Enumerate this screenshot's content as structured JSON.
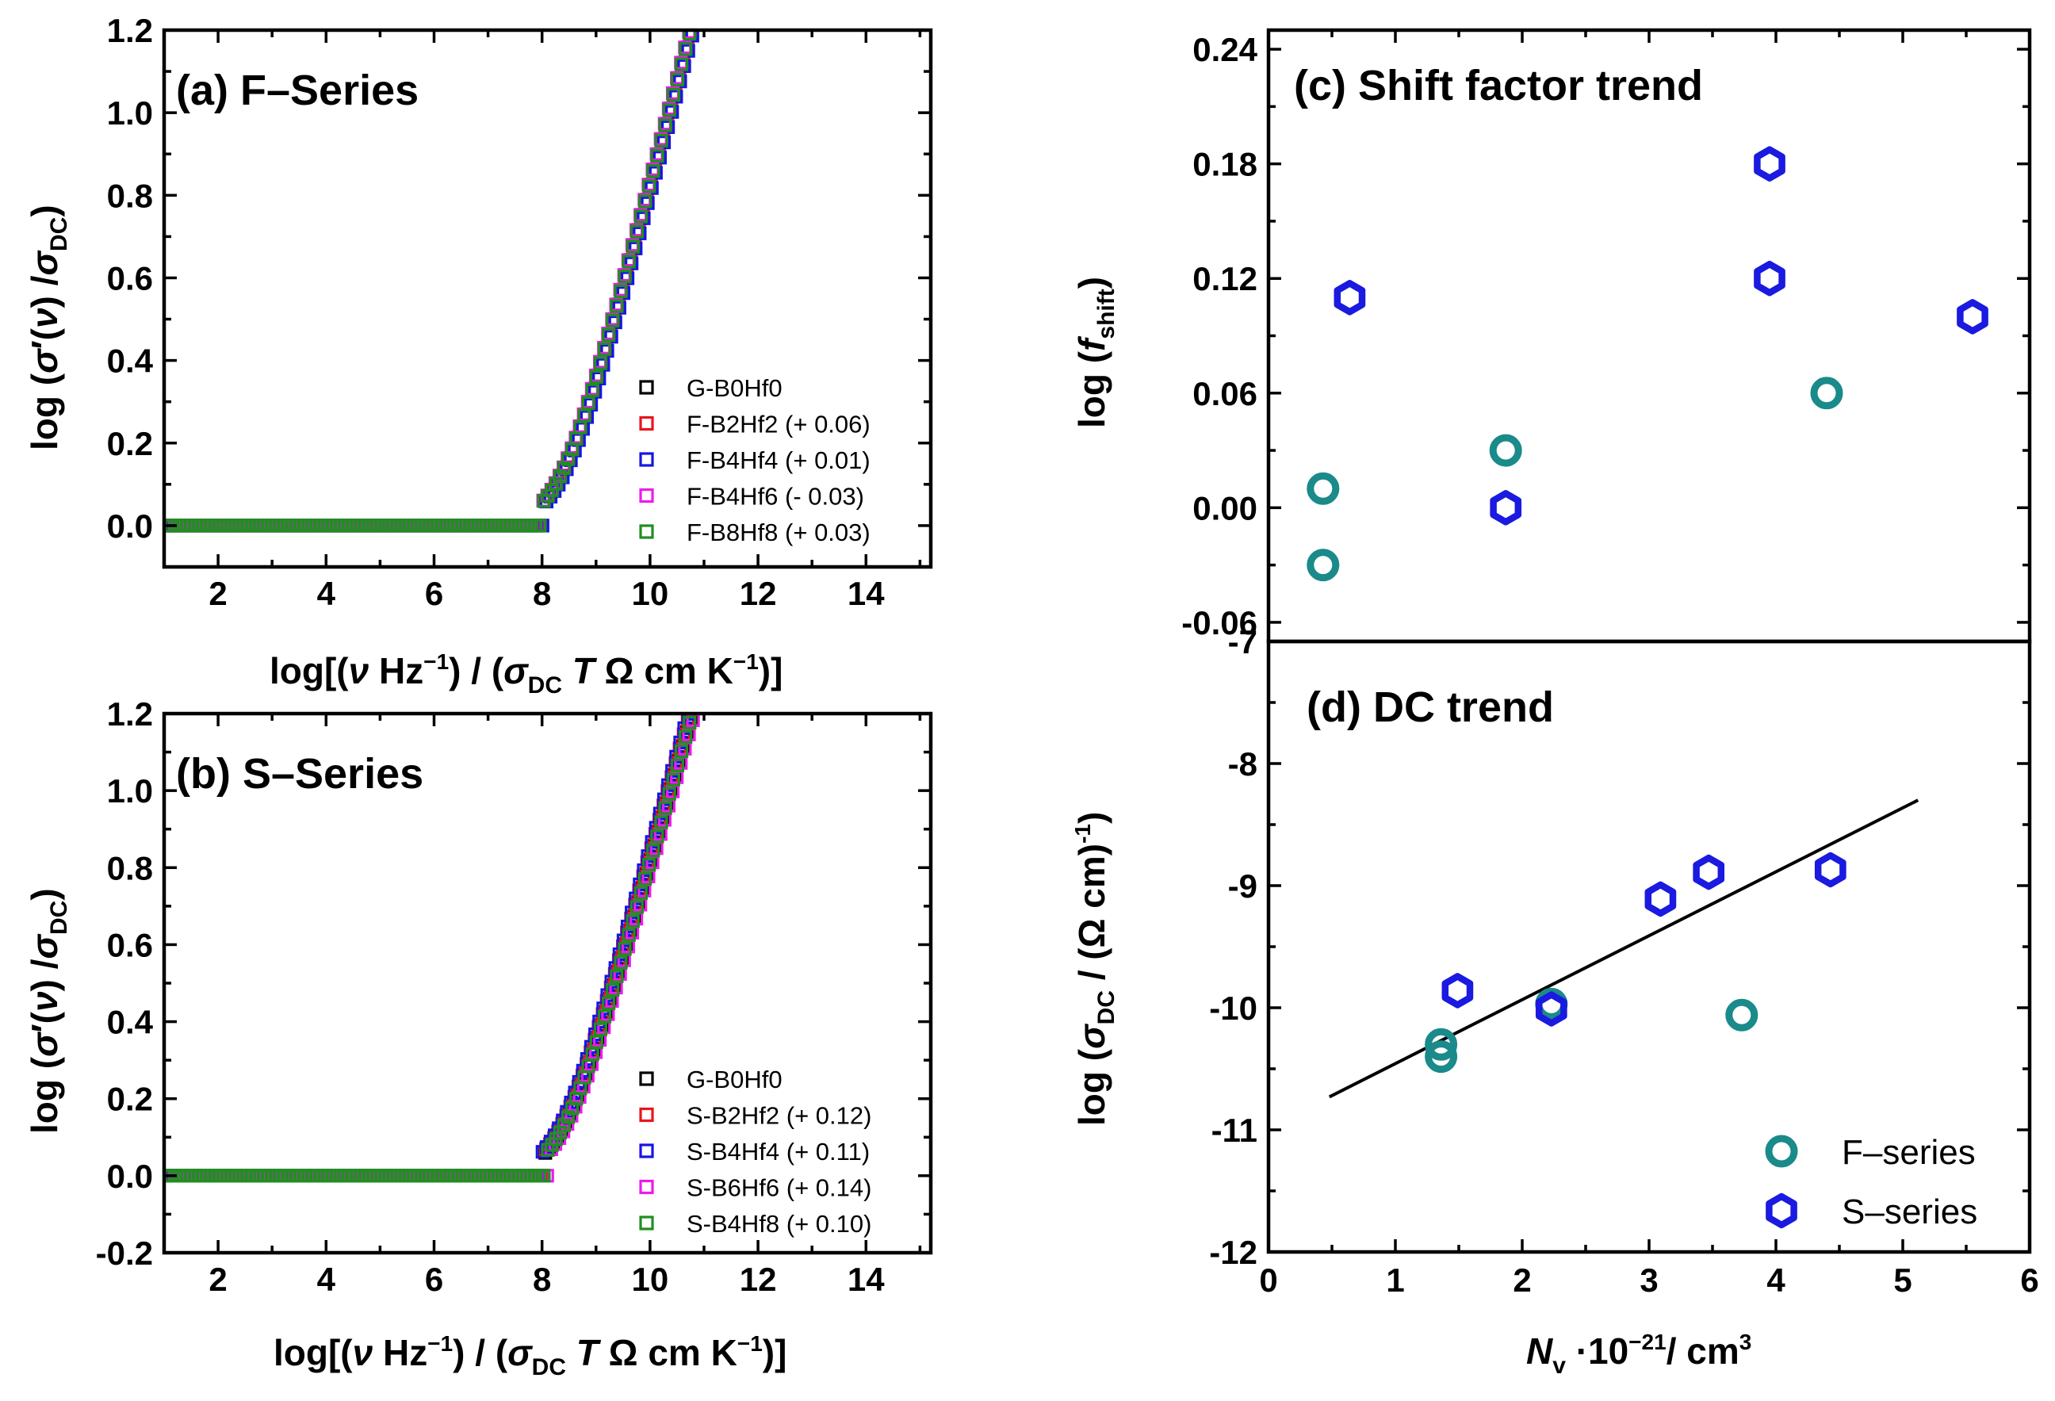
{
  "colors": {
    "black": "#000000",
    "red": "#e8161c",
    "blue": "#1515e6",
    "magenta": "#ee1aee",
    "green": "#1f8f1f",
    "teal": "#1a8a8a",
    "hexblue": "#1a1ae0"
  },
  "chart_data": [
    {
      "id": "a",
      "type": "scatter",
      "title": "(a) F–Series",
      "xlabel": "log[(ν Hz⁻¹) / (σDC T Ω cm K⁻¹)]",
      "ylabel": "log (σ′(ν) / σDC)",
      "xlim": [
        1,
        15.2
      ],
      "ylim": [
        -0.1,
        1.2
      ],
      "xticks": [
        "2",
        "4",
        "6",
        "8",
        "10",
        "12",
        "14"
      ],
      "yticks": [
        "0.0",
        "0.2",
        "0.4",
        "0.6",
        "0.8",
        "1.0",
        "1.2"
      ],
      "legend_position": "lower-right",
      "marker": "open-square",
      "series": [
        {
          "name": "G-B0Hf0",
          "color": "black",
          "x_onset": 8.05
        },
        {
          "name": "F-B2Hf2 (+ 0.06)",
          "color": "red",
          "x_onset": 8.05
        },
        {
          "name": "F-B4Hf4 (+ 0.01)",
          "color": "blue",
          "x_onset": 8.08
        },
        {
          "name": "F-B4Hf6 (- 0.03)",
          "color": "magenta",
          "x_onset": 8.0
        },
        {
          "name": "F-B8Hf8 (+ 0.03)",
          "color": "green",
          "x_onset": 8.02
        }
      ]
    },
    {
      "id": "b",
      "type": "scatter",
      "title": "(b) S–Series",
      "xlabel": "log[(ν Hz⁻¹) / (σDC T Ω cm K⁻¹)]",
      "ylabel": "log (σ′(ν) / σDC)",
      "xlim": [
        1,
        15.2
      ],
      "ylim": [
        -0.2,
        1.2
      ],
      "xticks": [
        "2",
        "4",
        "6",
        "8",
        "10",
        "12",
        "14"
      ],
      "yticks": [
        "-0.2",
        "0.0",
        "0.2",
        "0.4",
        "0.6",
        "0.8",
        "1.0",
        "1.2"
      ],
      "legend_position": "lower-right",
      "marker": "open-square",
      "series": [
        {
          "name": "G-B0Hf0",
          "color": "black",
          "x_onset": 8.05
        },
        {
          "name": "S-B2Hf2 (+ 0.12)",
          "color": "red",
          "x_onset": 8.0
        },
        {
          "name": "S-B4Hf4 (+ 0.11)",
          "color": "blue",
          "x_onset": 7.98
        },
        {
          "name": "S-B6Hf6 (+ 0.14)",
          "color": "magenta",
          "x_onset": 8.1
        },
        {
          "name": "S-B4Hf8 (+ 0.10)",
          "color": "green",
          "x_onset": 8.05
        }
      ]
    },
    {
      "id": "c",
      "type": "scatter",
      "title": "(c) Shift factor trend",
      "xlabel": "",
      "ylabel": "log (fshift)",
      "xlim": [
        0,
        6
      ],
      "ylim": [
        -0.07,
        0.25
      ],
      "yticks": [
        "-0.06",
        "0.00",
        "0.06",
        "0.12",
        "0.18",
        "0.24"
      ],
      "series": [
        {
          "name": "F–series",
          "color": "teal",
          "marker": "circle",
          "x": [
            0.43,
            0.43,
            1.87,
            4.4
          ],
          "y": [
            0.01,
            -0.03,
            0.03,
            0.06
          ]
        },
        {
          "name": "S–series",
          "color": "hexblue",
          "marker": "hexagon",
          "x": [
            0.64,
            1.87,
            3.95,
            3.95,
            5.55
          ],
          "y": [
            0.11,
            0.0,
            0.18,
            0.12,
            0.1
          ]
        }
      ]
    },
    {
      "id": "d",
      "type": "scatter",
      "title": "(d) DC trend",
      "xlabel": "Nv ·10⁻²¹/ cm³",
      "ylabel": "log (σDC / (Ω cm)⁻¹)",
      "xlim": [
        0,
        6
      ],
      "ylim": [
        -12,
        -7
      ],
      "xticks": [
        "0",
        "1",
        "2",
        "3",
        "4",
        "5",
        "6"
      ],
      "yticks": [
        "-12",
        "-11",
        "-10",
        "-9",
        "-8",
        "-7"
      ],
      "legend_position": "lower-right",
      "series": [
        {
          "name": "F–series",
          "color": "teal",
          "marker": "circle",
          "x": [
            1.36,
            1.36,
            2.23,
            3.73
          ],
          "y": [
            -10.3,
            -10.4,
            -9.97,
            -10.06
          ]
        },
        {
          "name": "S–series",
          "color": "hexblue",
          "marker": "hexagon",
          "x": [
            1.49,
            2.23,
            3.09,
            3.47,
            4.43
          ],
          "y": [
            -9.86,
            -10.01,
            -9.11,
            -8.89,
            -8.87
          ]
        }
      ],
      "fit_line": {
        "x": [
          0.48,
          5.12
        ],
        "y": [
          -10.73,
          -8.3
        ]
      }
    }
  ]
}
